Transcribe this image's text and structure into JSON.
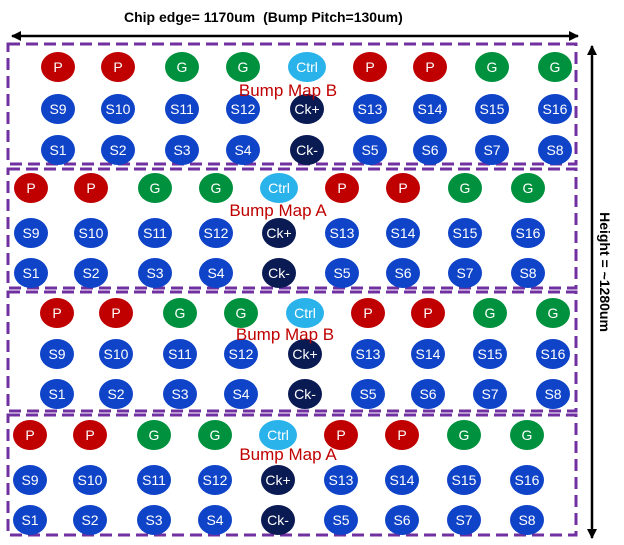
{
  "header": {
    "chip_edge": "Chip edge= 1170um",
    "bump_pitch": "(Bump Pitch=130um)"
  },
  "height_label": "Height = ~1280um",
  "colors": {
    "P": "#c00000",
    "G": "#00913e",
    "Ctrl": "#2ab3ea",
    "S": "#0f44c8",
    "Ck": "#0a1a52",
    "frame": "#7030a0",
    "map_label": "#c00000"
  },
  "sections": [
    {
      "map_label": "Bump Map B",
      "rows": [
        [
          "P",
          "P",
          "G",
          "G",
          "Ctrl",
          "P",
          "P",
          "G",
          "G"
        ],
        [
          "S9",
          "S10",
          "S11",
          "S12",
          "Ck+",
          "S13",
          "S14",
          "S15",
          "S16"
        ],
        [
          "S1",
          "S2",
          "S3",
          "S4",
          "Ck-",
          "S5",
          "S6",
          "S7",
          "S8"
        ]
      ]
    },
    {
      "map_label": "Bump Map A",
      "rows": [
        [
          "P",
          "P",
          "G",
          "G",
          "Ctrl",
          "P",
          "P",
          "G",
          "G"
        ],
        [
          "S9",
          "S10",
          "S11",
          "S12",
          "Ck+",
          "S13",
          "S14",
          "S15",
          "S16"
        ],
        [
          "S1",
          "S2",
          "S3",
          "S4",
          "Ck-",
          "S5",
          "S6",
          "S7",
          "S8"
        ]
      ]
    },
    {
      "map_label": "Bump Map B",
      "rows": [
        [
          "P",
          "P",
          "G",
          "G",
          "Ctrl",
          "P",
          "P",
          "G",
          "G"
        ],
        [
          "S9",
          "S10",
          "S11",
          "S12",
          "Ck+",
          "S13",
          "S14",
          "S15",
          "S16"
        ],
        [
          "S1",
          "S2",
          "S3",
          "S4",
          "Ck-",
          "S5",
          "S6",
          "S7",
          "S8"
        ]
      ]
    },
    {
      "map_label": "Bump Map A",
      "rows": [
        [
          "P",
          "P",
          "G",
          "G",
          "Ctrl",
          "P",
          "P",
          "G",
          "G"
        ],
        [
          "S9",
          "S10",
          "S11",
          "S12",
          "Ck+",
          "S13",
          "S14",
          "S15",
          "S16"
        ],
        [
          "S1",
          "S2",
          "S3",
          "S4",
          "Ck-",
          "S5",
          "S6",
          "S7",
          "S8"
        ]
      ]
    }
  ]
}
